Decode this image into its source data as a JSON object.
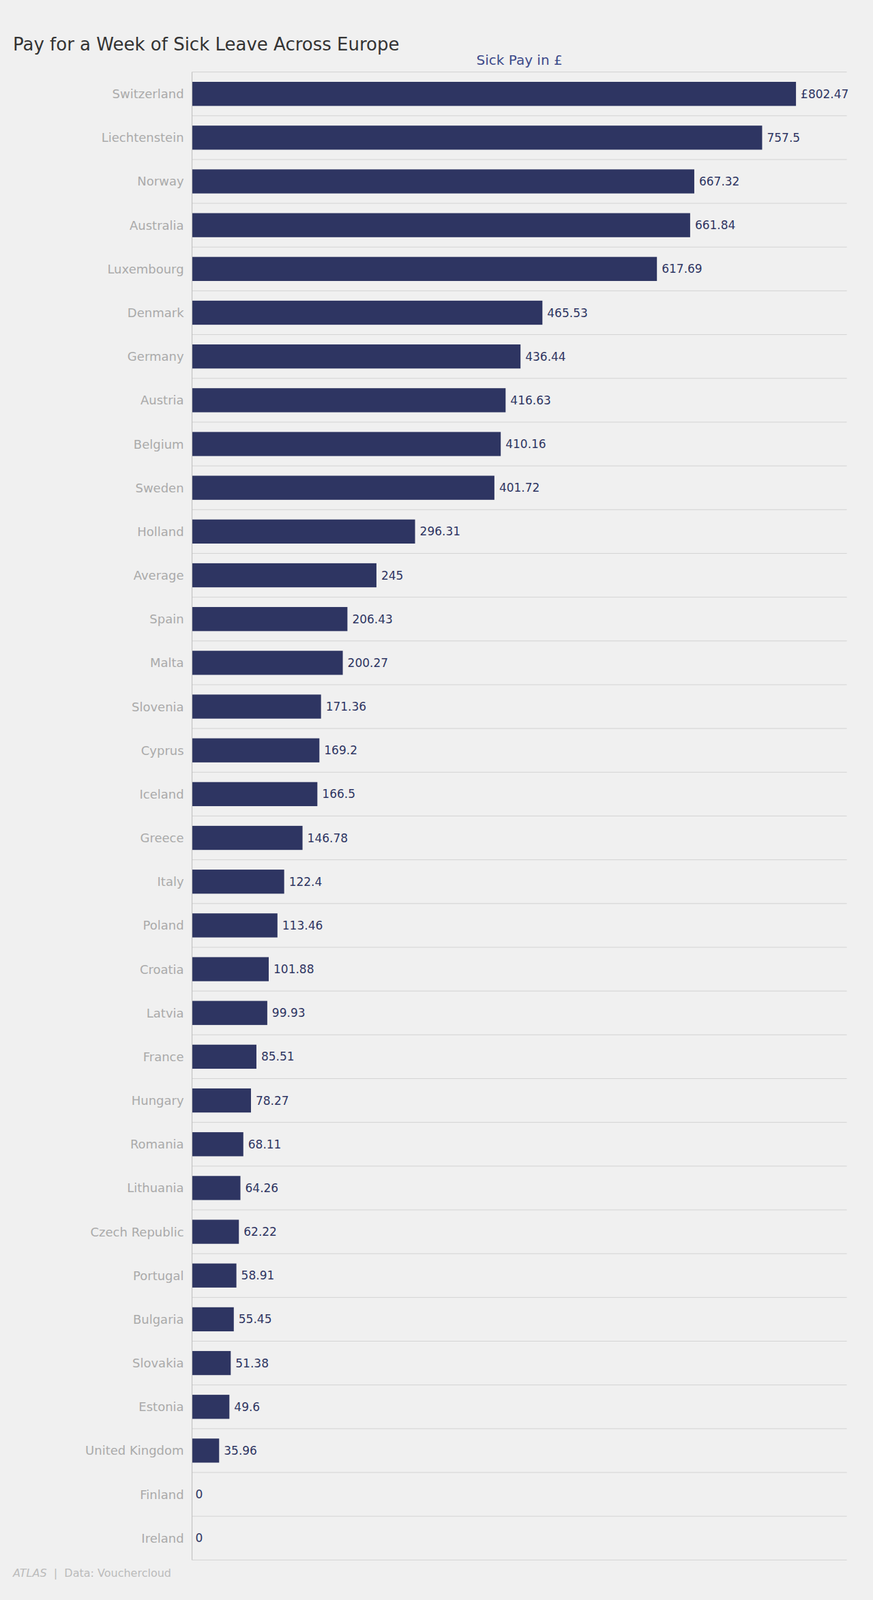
{
  "chart_data": {
    "type": "bar",
    "orientation": "horizontal",
    "title": "Pay for a Week of Sick Leave Across Europe",
    "subtitle": "Sick Pay in £",
    "annotations": [
      "ATLAS",
      "  |  Data: Vouchercloud"
    ],
    "categories": [
      "Switzerland",
      "Liechtenstein",
      "Norway",
      "Australia",
      "Luxembourg",
      "Denmark",
      "Germany",
      "Austria",
      "Belgium",
      "Sweden",
      "Holland",
      "Average",
      "Spain",
      "Malta",
      "Slovenia",
      "Cyprus",
      "Iceland",
      "Greece",
      "Italy",
      "Poland",
      "Croatia",
      "Latvia",
      "France",
      "Hungary",
      "Romania",
      "Lithuania",
      "Czech Republic",
      "Portugal",
      "Bulgaria",
      "Slovakia",
      "Estonia",
      "United Kingdom",
      "Finland",
      "Ireland"
    ],
    "values": [
      802.47,
      757.5,
      667.32,
      661.84,
      617.69,
      465.53,
      436.44,
      416.63,
      410.16,
      401.72,
      296.31,
      245,
      206.43,
      200.27,
      171.36,
      169.2,
      166.5,
      146.78,
      122.4,
      113.46,
      101.88,
      99.93,
      85.51,
      78.27,
      68.11,
      64.26,
      62.22,
      58.91,
      55.45,
      51.38,
      49.6,
      35.96,
      0,
      0
    ],
    "value_labels": [
      "£802.47",
      "757.5",
      "667.32",
      "661.84",
      "617.69",
      "465.53",
      "436.44",
      "416.63",
      "410.16",
      "401.72",
      "296.31",
      "245",
      "206.43",
      "200.27",
      "171.36",
      "169.2",
      "166.5",
      "146.78",
      "122.4",
      "113.46",
      "101.88",
      "99.93",
      "85.51",
      "78.27",
      "68.11",
      "64.26",
      "62.22",
      "58.91",
      "55.45",
      "51.38",
      "49.6",
      "35.96",
      "0",
      "0"
    ],
    "data_labels": true,
    "tick_labels": "y",
    "color": "#2e3562",
    "xlim": [
      0,
      870
    ]
  }
}
